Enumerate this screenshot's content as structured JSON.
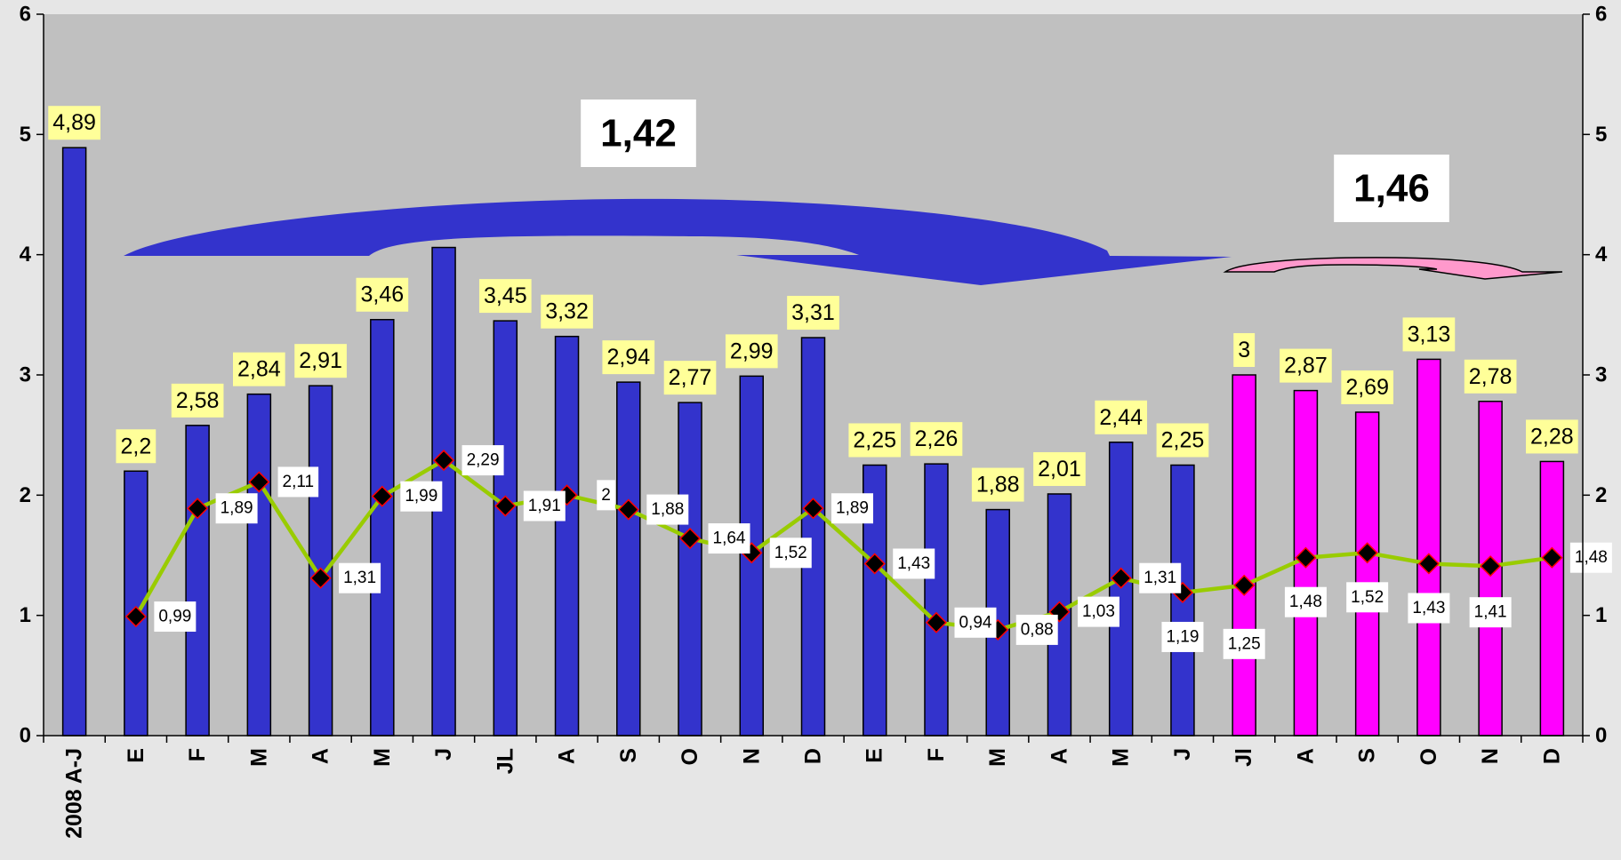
{
  "chart_data": {
    "type": "bar",
    "categories": [
      "2008 A-J",
      "E",
      "F",
      "M",
      "A",
      "M",
      "J",
      "JL",
      "A",
      "S",
      "O",
      "N",
      "D",
      "E",
      "F",
      "M",
      "A",
      "M",
      "J",
      "Jl",
      "A",
      "S",
      "O",
      "N",
      "D"
    ],
    "series": [
      {
        "type": "bar",
        "values": [
          4.89,
          2.2,
          2.58,
          2.84,
          2.91,
          3.46,
          4.06,
          3.45,
          3.32,
          2.94,
          2.77,
          2.99,
          3.31,
          2.25,
          2.26,
          1.88,
          2.01,
          2.44,
          2.25,
          3,
          2.87,
          2.69,
          3.13,
          2.78,
          2.28
        ],
        "labels": [
          "4,89",
          "2,2",
          "2,58",
          "2,84",
          "2,91",
          "3,46",
          "",
          "3,45",
          "3,32",
          "2,94",
          "2,77",
          "2,99",
          "3,31",
          "2,25",
          "2,26",
          "1,88",
          "2,01",
          "2,44",
          "2,25",
          "3",
          "2,87",
          "2,69",
          "3,13",
          "2,78",
          "2,28"
        ],
        "colors": [
          "#3333cc",
          "#3333cc",
          "#3333cc",
          "#3333cc",
          "#3333cc",
          "#3333cc",
          "#3333cc",
          "#3333cc",
          "#3333cc",
          "#3333cc",
          "#3333cc",
          "#3333cc",
          "#3333cc",
          "#3333cc",
          "#3333cc",
          "#3333cc",
          "#3333cc",
          "#3333cc",
          "#3333cc",
          "#ff00ff",
          "#ff00ff",
          "#ff00ff",
          "#ff00ff",
          "#ff00ff",
          "#ff00ff"
        ]
      },
      {
        "type": "line",
        "values": [
          null,
          0.99,
          1.89,
          2.11,
          1.31,
          1.99,
          2.29,
          1.91,
          2,
          1.88,
          1.64,
          1.52,
          1.89,
          1.43,
          0.94,
          0.88,
          1.03,
          1.31,
          1.19,
          1.25,
          1.48,
          1.52,
          1.43,
          1.41,
          1.48
        ],
        "labels": [
          "",
          "0,99",
          "1,89",
          "2,11",
          "1,31",
          "1,99",
          "2,29",
          "1,91",
          "2",
          "1,88",
          "1,64",
          "1,52",
          "1,89",
          "1,43",
          "0,94",
          "0,88",
          "1,03",
          "1,31",
          "1,19",
          "1,25",
          "1,48",
          "1,52",
          "1,43",
          "1,41",
          "1,48"
        ],
        "line_color": "#99cc00",
        "marker_color": "#000000"
      }
    ],
    "ylim": [
      0,
      6
    ],
    "y_ticks": [
      "0",
      "1",
      "2",
      "3",
      "4",
      "5",
      "6"
    ],
    "secondary_ylim": [
      0,
      6
    ],
    "secondary_y_ticks": [
      "0",
      "1",
      "2",
      "3",
      "4",
      "5",
      "6"
    ],
    "annotations": [
      {
        "text": "1,42",
        "arrow_color": "#3333cc"
      },
      {
        "text": "1,46",
        "arrow_color": "#ff99cc"
      }
    ],
    "colors": {
      "plot_background": "#c0c0c0",
      "page_background": "#e6e6e6",
      "bar_label_background": "#ffff99"
    },
    "grid": false,
    "legend": "none"
  }
}
